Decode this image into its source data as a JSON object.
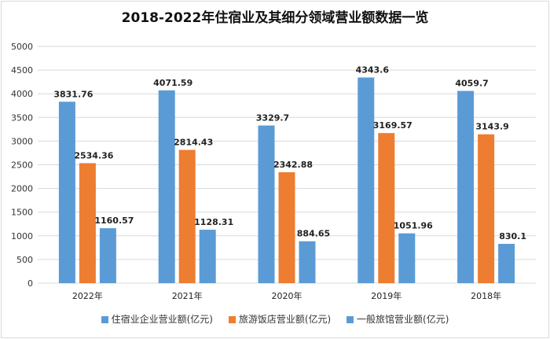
{
  "chart_data": {
    "type": "bar",
    "title": "2018-2022年住宿业及其细分领域营业额数据一览",
    "categories": [
      "2022年",
      "2021年",
      "2020年",
      "2019年",
      "2018年"
    ],
    "series": [
      {
        "name": "住宿业企业营业额(亿元)",
        "color": "#5b9bd5",
        "values": [
          3831.76,
          4071.59,
          3329.7,
          4343.6,
          4059.7
        ],
        "labels": [
          "3831.76",
          "4071.59",
          "3329.7",
          "4343.6",
          "4059.7"
        ]
      },
      {
        "name": "旅游饭店营业额(亿元)",
        "color": "#ed7d31",
        "values": [
          2534.36,
          2814.43,
          2342.88,
          3169.57,
          3143.9
        ],
        "labels": [
          "2534.36",
          "2814.43",
          "2342.88",
          "3169.57",
          "3143.9"
        ]
      },
      {
        "name": "一般旅馆营业额(亿元)",
        "color": "#5b9bd5",
        "values": [
          1160.57,
          1128.31,
          884.65,
          1051.96,
          830.1
        ],
        "labels": [
          "1160.57",
          "1128.31",
          "884.65",
          "1051.96",
          "830.1"
        ]
      }
    ],
    "ylim": [
      0,
      5000
    ],
    "yticks": [
      0,
      500,
      1000,
      1500,
      2000,
      2500,
      3000,
      3500,
      4000,
      4500,
      5000
    ],
    "ytick_labels": [
      "0",
      "500",
      "1000",
      "1500",
      "2000",
      "2500",
      "3000",
      "3500",
      "4000",
      "4500",
      "5000"
    ],
    "xlabel": "",
    "ylabel": "",
    "grid": true,
    "legend_position": "bottom"
  }
}
